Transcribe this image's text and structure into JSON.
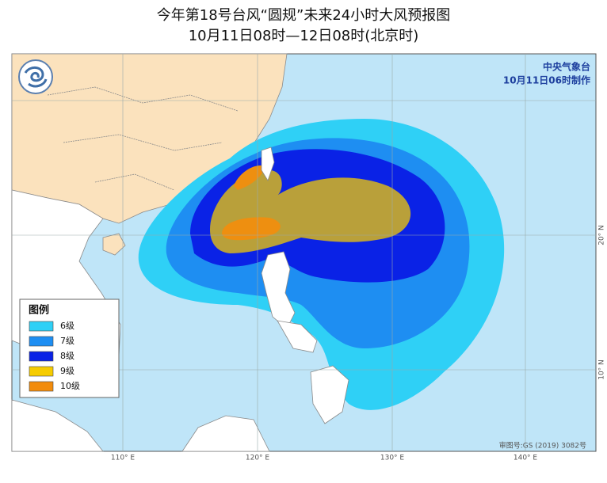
{
  "header": {
    "title": "今年第18号台风“圆规”未来24小时大风预报图",
    "subtitle": "10月11日08时—12日08时(北京时)"
  },
  "map": {
    "agency": "中央气象台",
    "issued": "10月11日06时制作",
    "approval": "审图号:GS (2019) 3082号",
    "longitude_labels": [
      "110° E",
      "120° E",
      "130° E",
      "140° E"
    ],
    "latitude_labels": [
      "20° N",
      "10° N"
    ]
  },
  "legend": {
    "title": "图例",
    "items": [
      {
        "label": "6级",
        "color": "#2fd0f6"
      },
      {
        "label": "7级",
        "color": "#1e8ef2"
      },
      {
        "label": "8级",
        "color": "#0a22e6"
      },
      {
        "label": "9级",
        "color": "#f6cc00"
      },
      {
        "label": "10级",
        "color": "#f28c0c"
      }
    ]
  }
}
